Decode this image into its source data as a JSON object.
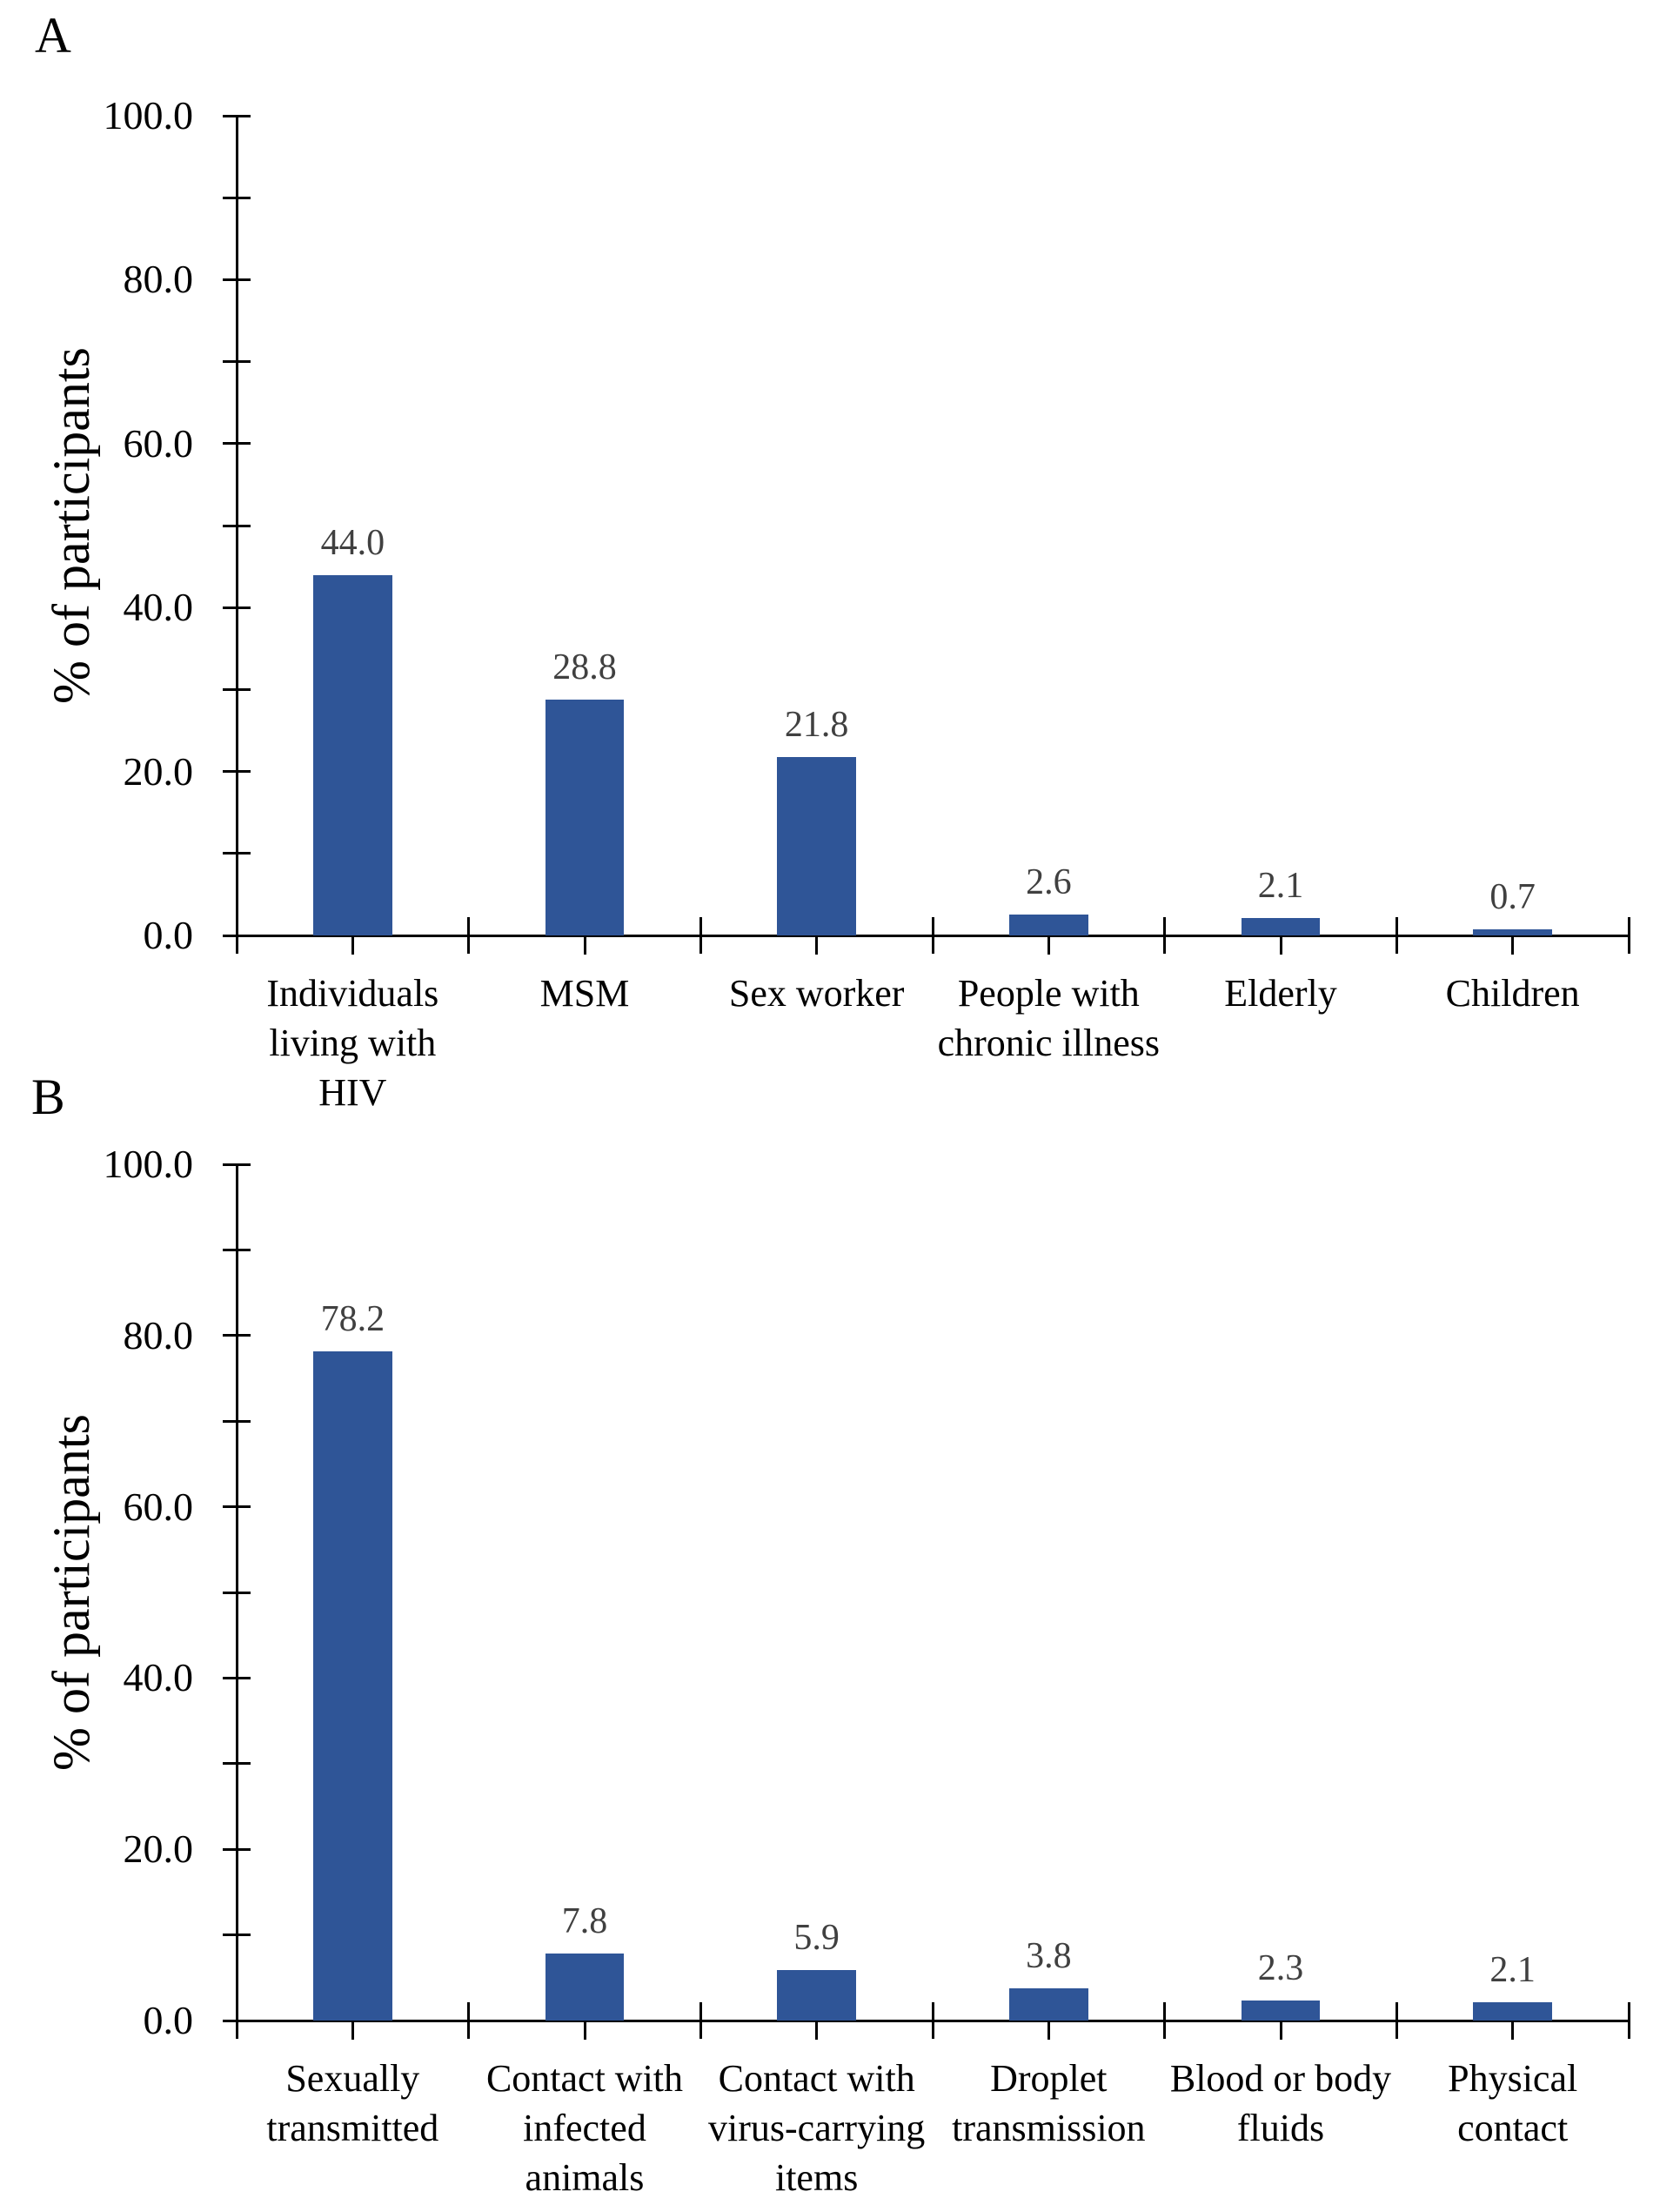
{
  "figure": {
    "background": "#ffffff",
    "axis_color": "#000000",
    "value_label_color": "#404040"
  },
  "chart_data": [
    {
      "type": "bar",
      "panel_label": "A",
      "title": "",
      "xlabel": "",
      "ylabel": "% of participants",
      "ylim": [
        0,
        100
      ],
      "y_major_step": 20,
      "y_minor_step": 10,
      "y_major_tick_labels": [
        "0.0",
        "20.0",
        "40.0",
        "60.0",
        "80.0",
        "100.0"
      ],
      "grid": "off",
      "legend": "none",
      "bar_color": "#2F5597",
      "categories": [
        "Individuals living with HIV",
        "MSM",
        "Sex worker",
        "People with chronic illness",
        "Elderly",
        "Children"
      ],
      "category_lines": [
        [
          "Individuals",
          "living with",
          "HIV"
        ],
        [
          "MSM"
        ],
        [
          "Sex worker"
        ],
        [
          "People with",
          "chronic illness"
        ],
        [
          "Elderly"
        ],
        [
          "Children"
        ]
      ],
      "values": [
        44.0,
        28.8,
        21.8,
        2.6,
        2.1,
        0.7
      ],
      "value_labels": [
        "44.0",
        "28.8",
        "21.8",
        "2.6",
        "2.1",
        "0.7"
      ]
    },
    {
      "type": "bar",
      "panel_label": "B",
      "title": "",
      "xlabel": "",
      "ylabel": "% of participants",
      "ylim": [
        0,
        100
      ],
      "y_major_step": 20,
      "y_minor_step": 10,
      "y_major_tick_labels": [
        "0.0",
        "20.0",
        "40.0",
        "60.0",
        "80.0",
        "100.0"
      ],
      "grid": "off",
      "legend": "none",
      "bar_color": "#2F5597",
      "categories": [
        "Sexually transmitted",
        "Contact with infected animals",
        "Contact with virus-carrying items",
        "Droplet transmission",
        "Blood or body fluids",
        "Physical contact"
      ],
      "category_lines": [
        [
          "Sexually",
          "transmitted"
        ],
        [
          "Contact with",
          "infected",
          "animals"
        ],
        [
          "Contact with",
          "virus-carrying",
          "items"
        ],
        [
          "Droplet",
          "transmission"
        ],
        [
          "Blood or body",
          "fluids"
        ],
        [
          "Physical",
          "contact"
        ]
      ],
      "values": [
        78.2,
        7.8,
        5.9,
        3.8,
        2.3,
        2.1
      ],
      "value_labels": [
        "78.2",
        "7.8",
        "5.9",
        "3.8",
        "2.3",
        "2.1"
      ]
    }
  ]
}
